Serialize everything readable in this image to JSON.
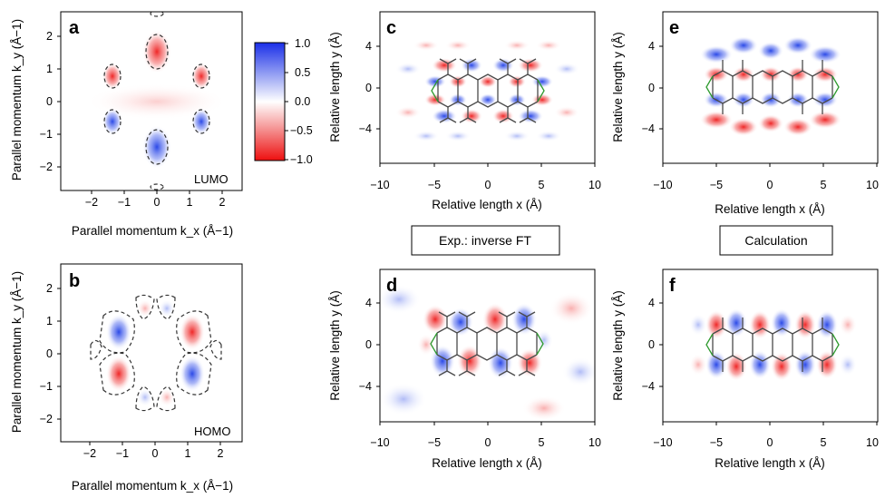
{
  "panels": {
    "a": {
      "letter": "a",
      "tag": "LUMO",
      "xlabel": "Parallel momentum k_x (Å−1)",
      "ylabel": "Parallel momentum k_y (Å−1)",
      "xticks": [
        "−2",
        "−1",
        "0",
        "1",
        "2"
      ],
      "yticks": [
        "2",
        "1",
        "0",
        "−1",
        "−2"
      ]
    },
    "b": {
      "letter": "b",
      "tag": "HOMO",
      "xlabel": "Parallel momentum k_x (Å−1)",
      "ylabel": "Parallel momentum k_y (Å−1)",
      "xticks": [
        "−2",
        "−1",
        "0",
        "1",
        "2"
      ],
      "yticks": [
        "2",
        "1",
        "0",
        "−1",
        "−2"
      ]
    },
    "c": {
      "letter": "c",
      "xlabel": "Relative length x (Å)",
      "ylabel": "Relative length y (Å)",
      "xticks": [
        "−10",
        "−5",
        "0",
        "5",
        "10"
      ],
      "yticks": [
        "4",
        "0",
        "−4"
      ]
    },
    "d": {
      "letter": "d",
      "xlabel": "Relative length x (Å)",
      "ylabel": "Relative length y (Å)",
      "xticks": [
        "−10",
        "−5",
        "0",
        "5",
        "10"
      ],
      "yticks": [
        "4",
        "0",
        "−4"
      ]
    },
    "e": {
      "letter": "e",
      "xlabel": "Relative length x (Å)",
      "ylabel": "Relative length y (Å)",
      "xticks": [
        "−10",
        "−5",
        "0",
        "5",
        "10"
      ],
      "yticks": [
        "4",
        "0",
        "−4"
      ]
    },
    "f": {
      "letter": "f",
      "xlabel": "Relative length x (Å)",
      "ylabel": "Relative length y (Å)",
      "xticks": [
        "−10",
        "−5",
        "0",
        "5",
        "10"
      ],
      "yticks": [
        "4",
        "0",
        "−4"
      ]
    }
  },
  "colorbar": {
    "ticks": [
      "1.0",
      "0.5",
      "0.0",
      "−0.5",
      "−1.0"
    ]
  },
  "boxes": {
    "experiment": "Exp.: inverse FT",
    "calculation": "Calculation"
  },
  "colors": {
    "positive": "#1f3fe6",
    "negative": "#ee1b1b",
    "bond": "#4a4a4a",
    "terminal_bond": "#2e9a2e"
  }
}
